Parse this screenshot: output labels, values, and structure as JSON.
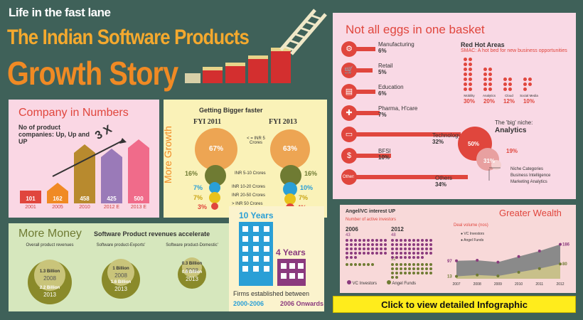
{
  "header": {
    "kicker": "Life in the fast lane",
    "title_line1": "The Indian Software Products",
    "title_line2": "Growth Story"
  },
  "company": {
    "title": "Company in Numbers",
    "subtitle": "No of product companies: Up, Up and UP",
    "multiplier": "3 X",
    "bars": [
      {
        "value": "101",
        "year": "2001",
        "pct": 0.2
      },
      {
        "value": "162",
        "year": "2005",
        "pct": 0.32
      },
      {
        "value": "458",
        "year": "2010",
        "pct": 0.92
      },
      {
        "value": "425",
        "year": "2012 E",
        "pct": 0.85
      },
      {
        "value": "500",
        "year": "2013 E",
        "pct": 1.0
      }
    ]
  },
  "growth": {
    "side_title": "More Growth",
    "title": "Getting Bigger faster",
    "fy11": "FYI 2011",
    "fy13": "FYI 2013",
    "rows": [
      {
        "label": "< = INR 5 Crores",
        "l": "67%",
        "r": "63%"
      },
      {
        "label": "INR 5-10 Crores",
        "l": "16%",
        "r": "16%"
      },
      {
        "label": "INR 10-20 Crores",
        "l": "7%",
        "r": "10%"
      },
      {
        "label": "INR 20-50 Crores",
        "l": "7%",
        "r": "7%"
      },
      {
        "label": "> INR 50 Crores",
        "l": "3%",
        "r": "4%"
      }
    ]
  },
  "money": {
    "title": "More Money",
    "subtitle": "Software Product revenues accelerate",
    "cols": [
      {
        "label": "Overall product revenues",
        "a": "1.3 Billion",
        "ay": "2008",
        "b": "2.2 Billion",
        "by": "2013"
      },
      {
        "label": "Software product-Exports'",
        "a": "1 Billion",
        "ay": "2008",
        "b": "1.6 Billion",
        "by": "2013"
      },
      {
        "label": "Software product-Domestic'",
        "a": "0.3 Billion",
        "ay": "2008",
        "b": "0.6 Billion",
        "by": "2013"
      }
    ]
  },
  "firms": {
    "years10": "10",
    "years10_label": "Years",
    "years4": "4",
    "years4_label": "Years",
    "caption": "Firms established between",
    "p1": "2000-2006",
    "p2": "2006 Onwards"
  },
  "eggs": {
    "title": "Not all eggs in one basket",
    "sectors": [
      {
        "name": "Manufacturing",
        "pct": "6%",
        "icon": "⚙"
      },
      {
        "name": "Retail",
        "pct": "5%",
        "icon": "🛒"
      },
      {
        "name": "Education",
        "pct": "6%",
        "icon": "▤"
      },
      {
        "name": "Pharma, H'care",
        "pct": "7%",
        "icon": "✚"
      },
      {
        "name": "Technology",
        "pct": "32%",
        "icon": "▭"
      },
      {
        "name": "BFSI",
        "pct": "10%",
        "icon": "$"
      },
      {
        "name": "Others",
        "pct": "34%",
        "icon": "Others"
      }
    ],
    "red_hot": {
      "title": "Red Hot Areas",
      "subtitle": "SMAC: A hot bed for new business opportunities",
      "items": [
        {
          "name": "Mobility",
          "pct": "30%",
          "dots": 14
        },
        {
          "name": "Analytics",
          "pct": "20%",
          "dots": 10
        },
        {
          "name": "Cloud",
          "pct": "12%",
          "dots": 6
        },
        {
          "name": "Social Media",
          "pct": "10%",
          "dots": 5
        }
      ]
    },
    "niche": {
      "title": "The 'big' niche:",
      "subtitle": "Analytics",
      "p50": "50%",
      "p31": "31%",
      "p19": "19%",
      "items": [
        "Niche Categories",
        "Business Intelligence",
        "Marketing Analytics"
      ]
    }
  },
  "wealth": {
    "title": "Greater Wealth",
    "investors_title": "Angel/VC interest UP",
    "active": "Number of active investors",
    "y1": "2006",
    "y2": "2012",
    "vc06": "43",
    "angel06": "7",
    "vc12": "48",
    "angel12": "32",
    "legend_vc": "VC Investors",
    "legend_angel": "Angel Funds",
    "deal_title": "Deal volume (nos)",
    "vc_start": "97",
    "angel_start": "13",
    "vc_end": "186",
    "angel_end": "80"
  },
  "chart_data": {
    "type": "area",
    "title": "Deal volume (nos)",
    "categories": [
      "2007",
      "2008",
      "2009",
      "2010",
      "2011",
      "2012"
    ],
    "series": [
      {
        "name": "VC Investors",
        "values": [
          97,
          100,
          90,
          120,
          150,
          186
        ]
      },
      {
        "name": "Angel Funds",
        "values": [
          13,
          20,
          15,
          35,
          55,
          80
        ]
      }
    ],
    "ylim": [
      0,
      200
    ]
  },
  "cta": "Click to view detailed Infographic",
  "colors": {
    "bg": "#3f6159",
    "orange": "#f08a24",
    "red": "#e0463d",
    "purple": "#8b3a7e"
  }
}
